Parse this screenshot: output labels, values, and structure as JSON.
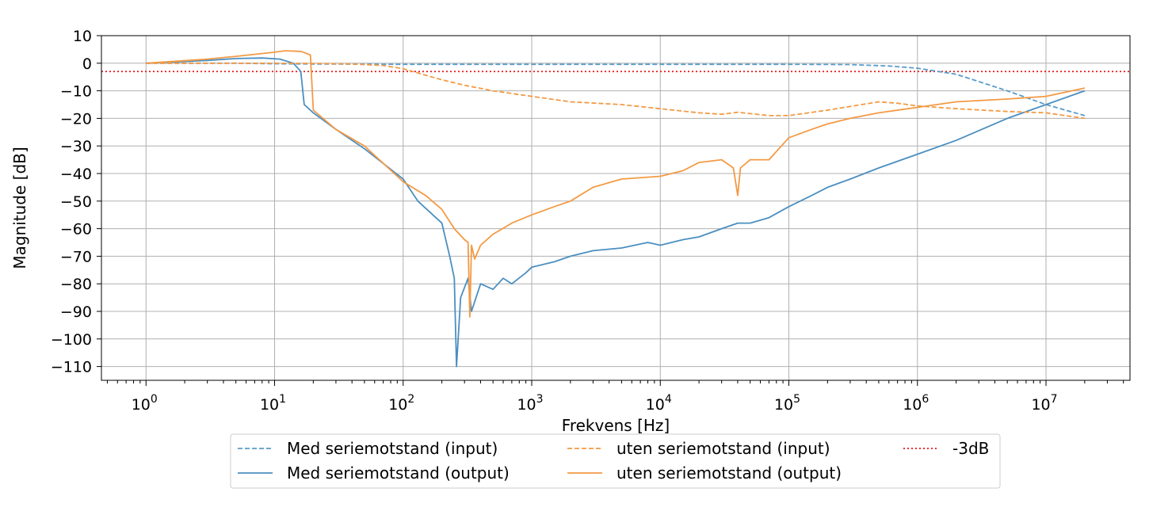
{
  "chart_data": {
    "type": "line",
    "title": "",
    "xlabel": "Frekvens [Hz]",
    "ylabel": "Magnitude [dB]",
    "xscale": "log",
    "xlim": [
      0.45,
      45000000
    ],
    "ylim": [
      -115,
      10
    ],
    "grid": true,
    "legend_position": "bottom-center",
    "x_ticks": [
      {
        "value": 1,
        "base": "10",
        "exp": "0"
      },
      {
        "value": 10,
        "base": "10",
        "exp": "1"
      },
      {
        "value": 100,
        "base": "10",
        "exp": "2"
      },
      {
        "value": 1000,
        "base": "10",
        "exp": "3"
      },
      {
        "value": 10000,
        "base": "10",
        "exp": "4"
      },
      {
        "value": 100000,
        "base": "10",
        "exp": "5"
      },
      {
        "value": 1000000,
        "base": "10",
        "exp": "6"
      },
      {
        "value": 10000000,
        "base": "10",
        "exp": "7"
      }
    ],
    "y_ticks": [
      {
        "value": 10,
        "label": "10"
      },
      {
        "value": 0,
        "label": "0"
      },
      {
        "value": -10,
        "label": "−10"
      },
      {
        "value": -20,
        "label": "−20"
      },
      {
        "value": -30,
        "label": "−30"
      },
      {
        "value": -40,
        "label": "−40"
      },
      {
        "value": -50,
        "label": "−50"
      },
      {
        "value": -60,
        "label": "−60"
      },
      {
        "value": -70,
        "label": "−70"
      },
      {
        "value": -80,
        "label": "−80"
      },
      {
        "value": -90,
        "label": "−90"
      },
      {
        "value": -100,
        "label": "−100"
      },
      {
        "value": -110,
        "label": "−110"
      }
    ],
    "series": [
      {
        "name": "Med seriemotstand (input)",
        "color": "#5a9bc9",
        "dash": "dashed",
        "points": [
          [
            1,
            0
          ],
          [
            5,
            0
          ],
          [
            10,
            -0.2
          ],
          [
            20,
            -0.3
          ],
          [
            100,
            -0.4
          ],
          [
            1000,
            -0.4
          ],
          [
            10000,
            -0.4
          ],
          [
            100000,
            -0.4
          ],
          [
            300000,
            -0.5
          ],
          [
            600000,
            -1
          ],
          [
            1000000,
            -1.8
          ],
          [
            2000000,
            -4
          ],
          [
            5000000,
            -10
          ],
          [
            10000000,
            -15
          ],
          [
            20000000,
            -19
          ]
        ]
      },
      {
        "name": "Med seriemotstand (output)",
        "color": "#4b8fc0",
        "dash": "solid",
        "points": [
          [
            1,
            0
          ],
          [
            3,
            1
          ],
          [
            5,
            1.7
          ],
          [
            8,
            1.9
          ],
          [
            11,
            1.5
          ],
          [
            14,
            0
          ],
          [
            16,
            -3
          ],
          [
            17,
            -15
          ],
          [
            20,
            -18
          ],
          [
            30,
            -24
          ],
          [
            50,
            -31
          ],
          [
            100,
            -42
          ],
          [
            130,
            -50
          ],
          [
            200,
            -58
          ],
          [
            230,
            -70
          ],
          [
            250,
            -78
          ],
          [
            260,
            -110
          ],
          [
            280,
            -85
          ],
          [
            320,
            -78
          ],
          [
            340,
            -90
          ],
          [
            400,
            -80
          ],
          [
            500,
            -82
          ],
          [
            600,
            -78
          ],
          [
            700,
            -80
          ],
          [
            900,
            -76
          ],
          [
            1000,
            -74
          ],
          [
            1500,
            -72
          ],
          [
            2000,
            -70
          ],
          [
            3000,
            -68
          ],
          [
            5000,
            -67
          ],
          [
            8000,
            -65
          ],
          [
            10000,
            -66
          ],
          [
            15000,
            -64
          ],
          [
            20000,
            -63
          ],
          [
            30000,
            -60
          ],
          [
            40000,
            -58
          ],
          [
            50000,
            -58
          ],
          [
            70000,
            -56
          ],
          [
            100000,
            -52
          ],
          [
            150000,
            -48
          ],
          [
            200000,
            -45
          ],
          [
            300000,
            -42
          ],
          [
            500000,
            -38
          ],
          [
            1000000,
            -33
          ],
          [
            2000000,
            -28
          ],
          [
            5000000,
            -20
          ],
          [
            10000000,
            -15
          ],
          [
            20000000,
            -10
          ]
        ]
      },
      {
        "name": "uten seriemotstand (input)",
        "color": "#f39a45",
        "dash": "dashed",
        "points": [
          [
            1,
            0
          ],
          [
            10,
            0
          ],
          [
            20,
            -0.1
          ],
          [
            40,
            -0.3
          ],
          [
            70,
            -0.8
          ],
          [
            100,
            -2
          ],
          [
            200,
            -6
          ],
          [
            300,
            -8
          ],
          [
            500,
            -10
          ],
          [
            1000,
            -12
          ],
          [
            2000,
            -14
          ],
          [
            5000,
            -15
          ],
          [
            10000,
            -16.5
          ],
          [
            20000,
            -18
          ],
          [
            30000,
            -18.5
          ],
          [
            40000,
            -17.8
          ],
          [
            70000,
            -19
          ],
          [
            100000,
            -19
          ],
          [
            200000,
            -17
          ],
          [
            500000,
            -14
          ],
          [
            700000,
            -14.5
          ],
          [
            1000000,
            -15.5
          ],
          [
            2000000,
            -16.5
          ],
          [
            5000000,
            -17.5
          ],
          [
            10000000,
            -18
          ],
          [
            20000000,
            -20
          ]
        ]
      },
      {
        "name": "uten seriemotstand (output)",
        "color": "#f39a45",
        "dash": "solid",
        "points": [
          [
            1,
            0
          ],
          [
            3,
            1.5
          ],
          [
            5,
            2.5
          ],
          [
            10,
            4
          ],
          [
            12,
            4.5
          ],
          [
            16,
            4.3
          ],
          [
            19,
            3
          ],
          [
            20,
            -17
          ],
          [
            30,
            -24
          ],
          [
            50,
            -30
          ],
          [
            100,
            -43
          ],
          [
            150,
            -48
          ],
          [
            200,
            -53
          ],
          [
            250,
            -60
          ],
          [
            300,
            -64
          ],
          [
            320,
            -65
          ],
          [
            330,
            -92
          ],
          [
            340,
            -66
          ],
          [
            360,
            -71
          ],
          [
            400,
            -66
          ],
          [
            500,
            -62
          ],
          [
            700,
            -58
          ],
          [
            1000,
            -55
          ],
          [
            1500,
            -52
          ],
          [
            2000,
            -50
          ],
          [
            3000,
            -45
          ],
          [
            5000,
            -42
          ],
          [
            10000,
            -41
          ],
          [
            15000,
            -39
          ],
          [
            20000,
            -36
          ],
          [
            30000,
            -35
          ],
          [
            37000,
            -38
          ],
          [
            40000,
            -48
          ],
          [
            42000,
            -38
          ],
          [
            50000,
            -35
          ],
          [
            70000,
            -35
          ],
          [
            100000,
            -27
          ],
          [
            150000,
            -24
          ],
          [
            200000,
            -22
          ],
          [
            300000,
            -20
          ],
          [
            500000,
            -18
          ],
          [
            1000000,
            -16
          ],
          [
            2000000,
            -14
          ],
          [
            5000000,
            -13
          ],
          [
            10000000,
            -12
          ],
          [
            20000000,
            -9
          ]
        ]
      },
      {
        "name": "-3dB",
        "color": "#e8161b",
        "dash": "dotted",
        "horizontal": -3
      }
    ]
  }
}
